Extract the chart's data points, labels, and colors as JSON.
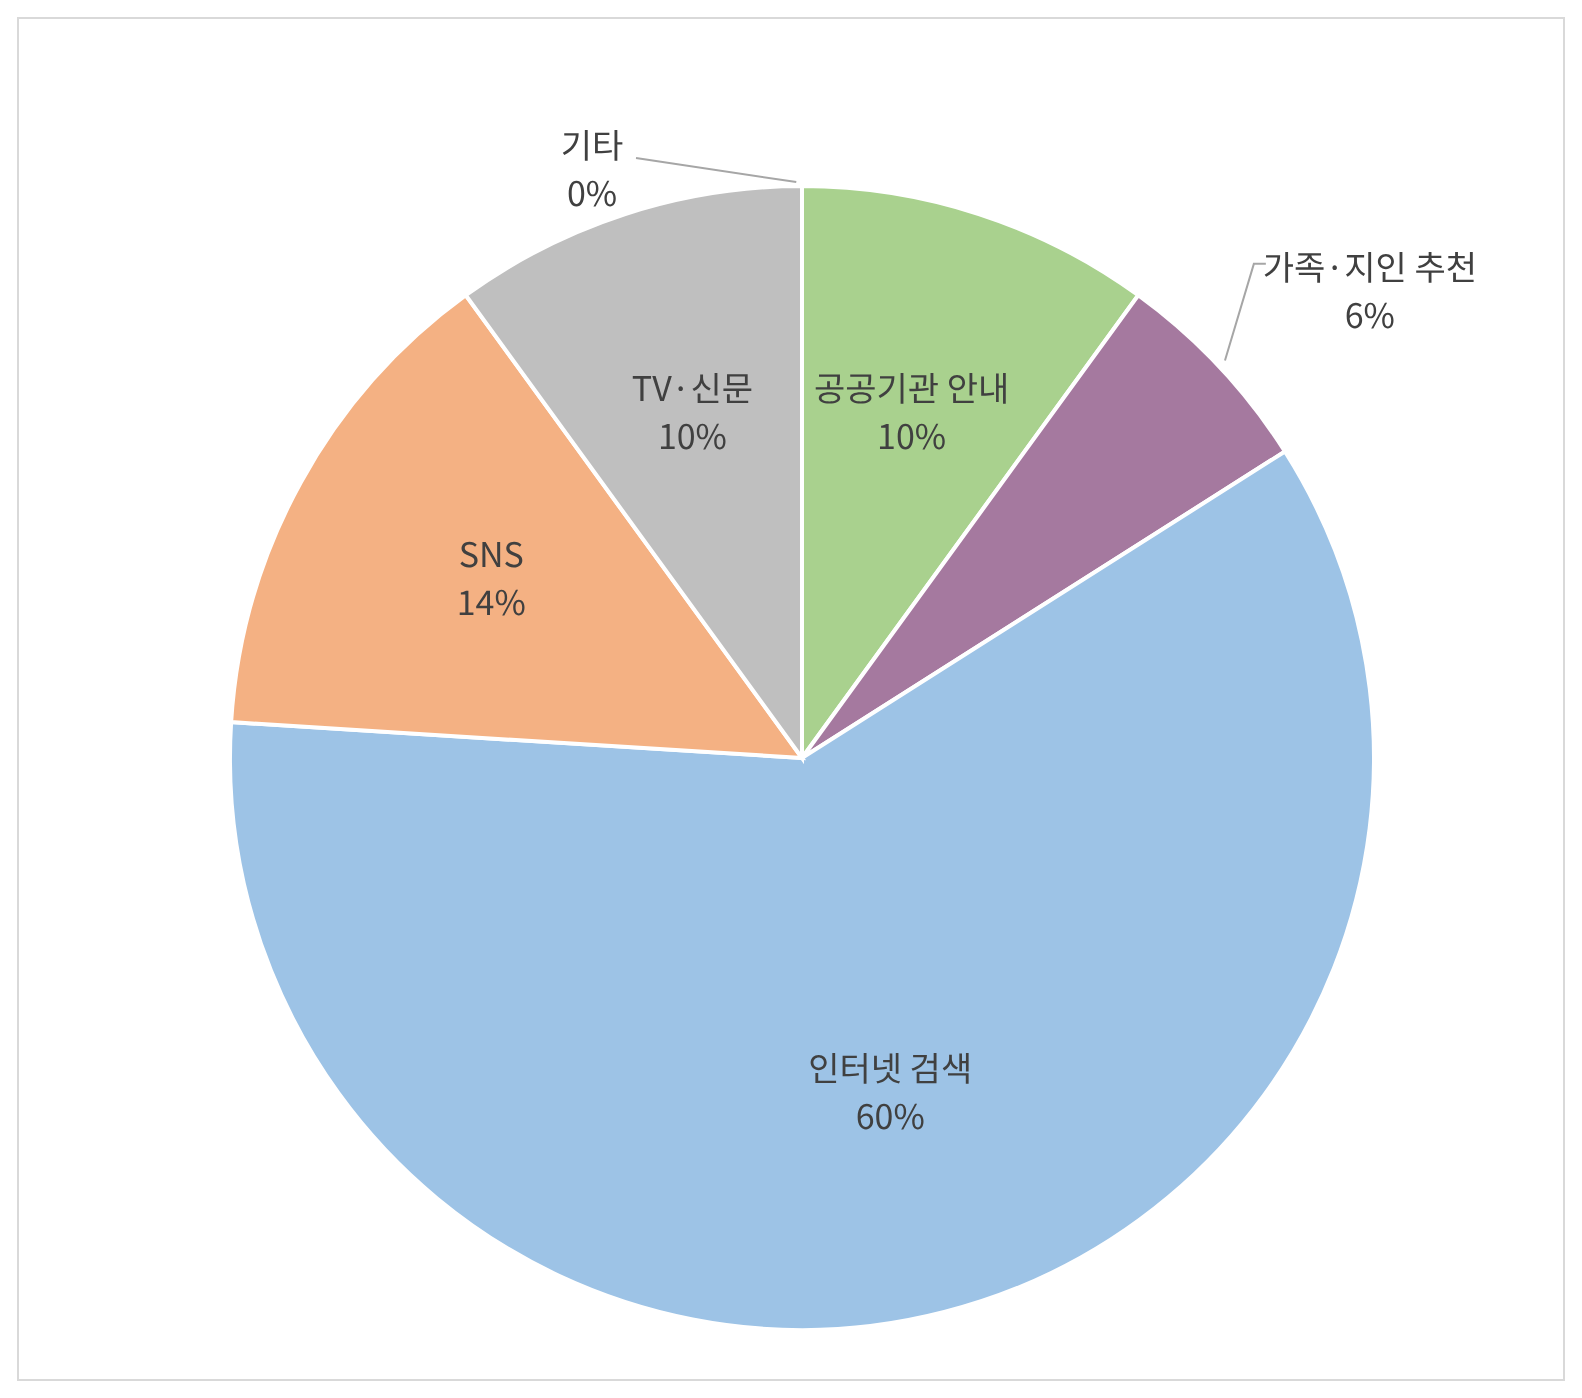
{
  "chart_data": {
    "type": "pie",
    "categories": [
      "공공기관 안내",
      "가족·지인 추천",
      "인터넷 검색",
      "SNS",
      "TV·신문",
      "기타"
    ],
    "values": [
      10,
      6,
      60,
      14,
      10,
      0
    ],
    "value_labels": [
      "10%",
      "6%",
      "60%",
      "14%",
      "10%",
      "0%"
    ],
    "colors": [
      "#a9d18e",
      "#a5799f",
      "#9dc3e6",
      "#f4b183",
      "#bfbfbf",
      "#7f6000"
    ]
  }
}
